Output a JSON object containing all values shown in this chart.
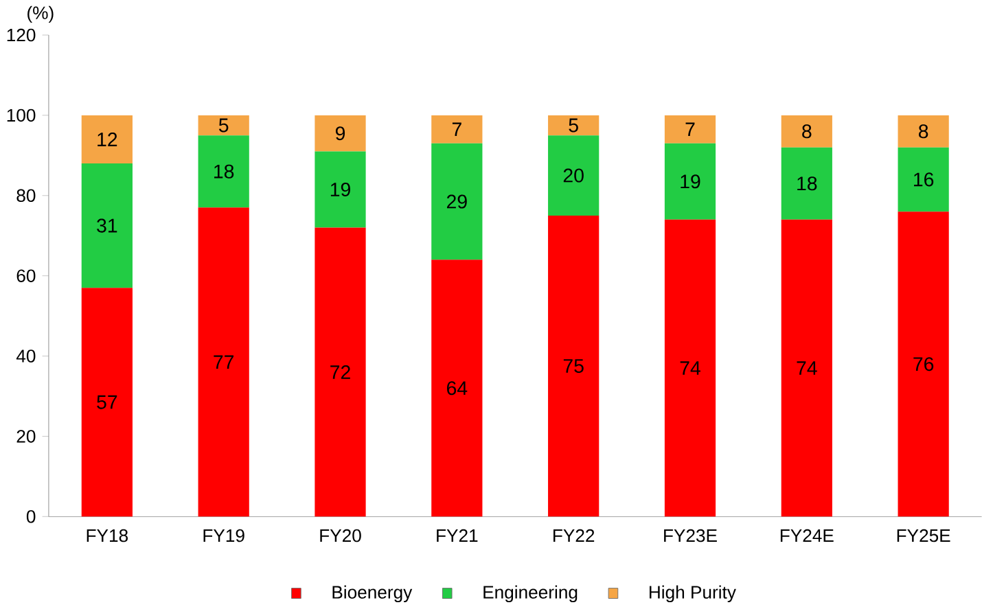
{
  "chart_data": {
    "type": "bar",
    "stacked": true,
    "ylabel": "(%)",
    "categories": [
      "FY18",
      "FY19",
      "FY20",
      "FY21",
      "FY22",
      "FY23E",
      "FY24E",
      "FY25E"
    ],
    "series": [
      {
        "name": "Bioenergy",
        "color": "#ff0000",
        "values": [
          57,
          77,
          72,
          64,
          75,
          74,
          74,
          76
        ]
      },
      {
        "name": "Engineering",
        "color": "#22cc44",
        "values": [
          31,
          18,
          19,
          29,
          20,
          19,
          18,
          16
        ]
      },
      {
        "name": "High Purity",
        "color": "#f5a545",
        "values": [
          12,
          5,
          9,
          7,
          5,
          7,
          8,
          8
        ]
      }
    ],
    "ylim": [
      0,
      120
    ],
    "yticks": [
      0,
      20,
      40,
      60,
      80,
      100,
      120
    ],
    "grid": false,
    "legend": "bottom",
    "data_labels": true
  }
}
